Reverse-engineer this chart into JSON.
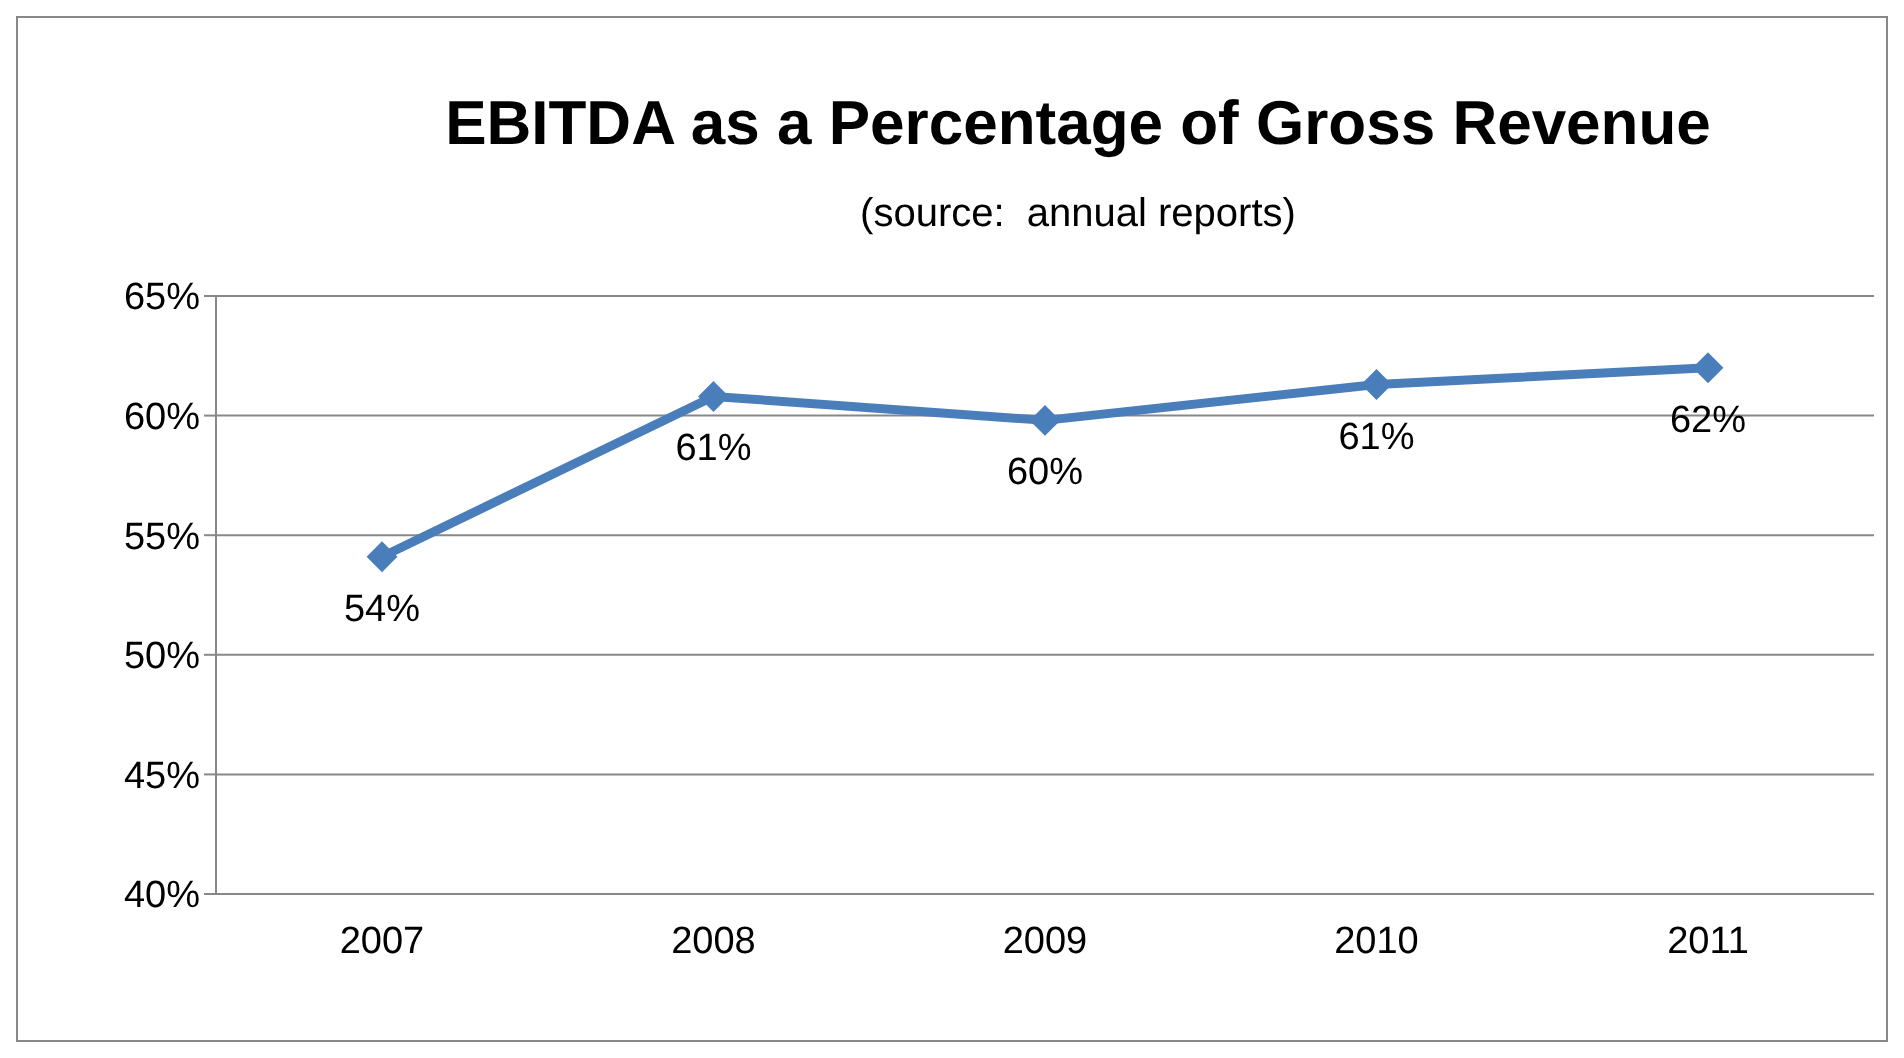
{
  "chart_data": {
    "type": "line",
    "title": "EBITDA as a Percentage of Gross Revenue",
    "subtitle": "(source:  annual reports)",
    "categories": [
      "2007",
      "2008",
      "2009",
      "2010",
      "2011"
    ],
    "series": [
      {
        "color": "#4a7ebb",
        "values": [
          54.1,
          60.8,
          59.8,
          61.3,
          62.0
        ],
        "value_labels": [
          "54%",
          "61%",
          "60%",
          "61%",
          "62%"
        ]
      }
    ],
    "ylim": [
      40,
      65
    ],
    "yticks": [
      {
        "value": 40,
        "label": "40%"
      },
      {
        "value": 45,
        "label": "45%"
      },
      {
        "value": 50,
        "label": "50%"
      },
      {
        "value": 55,
        "label": "55%"
      },
      {
        "value": 60,
        "label": "60%"
      },
      {
        "value": 65,
        "label": "65%"
      }
    ],
    "grid": "y",
    "marker": "diamond",
    "line_style": "solid"
  }
}
